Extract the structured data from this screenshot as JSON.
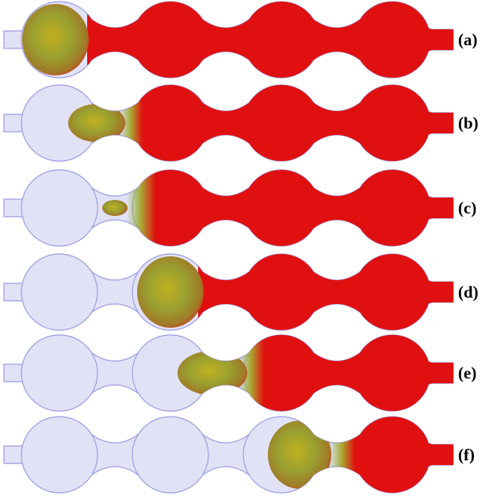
{
  "panels": {
    "labels": [
      "(a)",
      "(b)",
      "(c)",
      "(d)",
      "(e)",
      "(f)"
    ]
  }
}
